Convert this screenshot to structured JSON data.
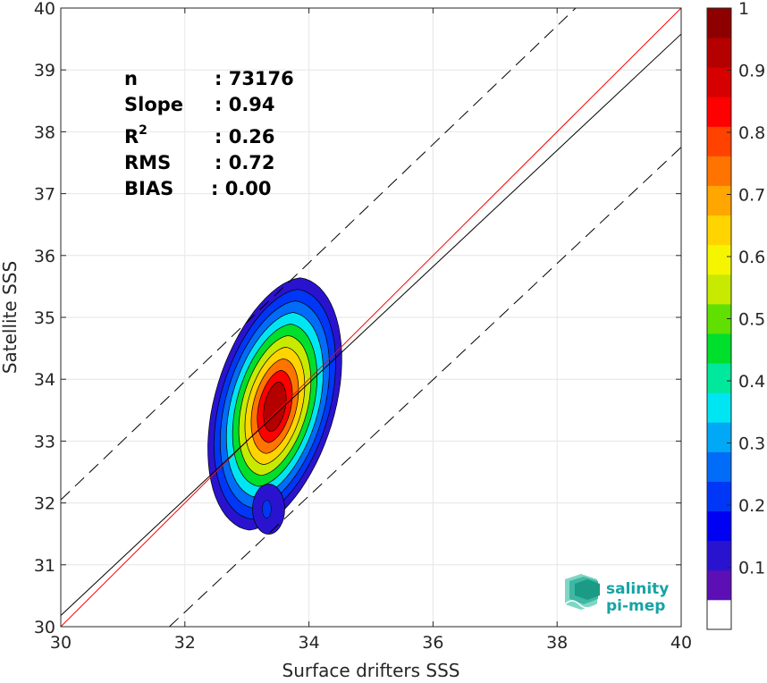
{
  "chart_data": {
    "type": "heatmap",
    "xlabel": "Surface drifters SSS",
    "ylabel": "Satellite SSS",
    "xlim": [
      30,
      40
    ],
    "ylim": [
      30,
      40
    ],
    "xticks": [
      30,
      32,
      34,
      36,
      38,
      40
    ],
    "yticks": [
      30,
      31,
      32,
      33,
      34,
      35,
      36,
      37,
      38,
      39,
      40
    ],
    "grid": true,
    "density_center": [
      33.45,
      33.55
    ],
    "density_levels": [
      0.05,
      0.1,
      0.2,
      0.3,
      0.4,
      0.5,
      0.6,
      0.7,
      0.8,
      0.9
    ],
    "lines": [
      {
        "name": "identity",
        "color": "#ff0000",
        "style": "solid",
        "points": [
          [
            30,
            30
          ],
          [
            40,
            40
          ]
        ]
      },
      {
        "name": "regression",
        "color": "#000000",
        "style": "solid",
        "points": [
          [
            30,
            30.18
          ],
          [
            40,
            39.58
          ]
        ]
      },
      {
        "name": "upper_bound",
        "color": "#000000",
        "style": "dashed",
        "points": [
          [
            30,
            32.05
          ],
          [
            38.3,
            40
          ]
        ]
      },
      {
        "name": "lower_bound",
        "color": "#000000",
        "style": "dashed",
        "points": [
          [
            31.75,
            30
          ],
          [
            40,
            37.75
          ]
        ]
      }
    ],
    "stats": [
      {
        "label": "n",
        "value": ": 73176"
      },
      {
        "label": "Slope",
        "value": ": 0.94"
      },
      {
        "label": "R",
        "sup": "2",
        "value": ": 0.26"
      },
      {
        "label": "RMS",
        "value": ": 0.72"
      },
      {
        "label": "BIAS",
        "value": ": 0.00"
      }
    ],
    "colorbar": {
      "ticks": [
        "0.1",
        "0.2",
        "0.3",
        "0.4",
        "0.5",
        "0.6",
        "0.7",
        "0.8",
        "0.9",
        "1"
      ],
      "tick_values": [
        0.1,
        0.2,
        0.3,
        0.4,
        0.5,
        0.6,
        0.7,
        0.8,
        0.9,
        1.0
      ],
      "colors": [
        "#ffffff",
        "#5b0fb5",
        "#2a13cf",
        "#0000f2",
        "#0036f5",
        "#006cf7",
        "#00a8f5",
        "#00e5f2",
        "#00e89b",
        "#00df2b",
        "#5fe000",
        "#c8ea00",
        "#f5f500",
        "#ffd400",
        "#ffa600",
        "#ff7400",
        "#ff4200",
        "#ff0000",
        "#d70000",
        "#b50000",
        "#8e0000"
      ]
    }
  },
  "logo": {
    "line1": "salinity",
    "line2": "pi-mep"
  }
}
